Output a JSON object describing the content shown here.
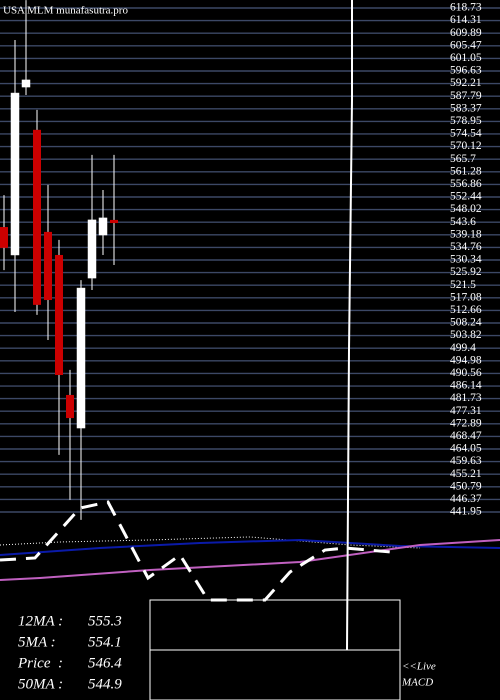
{
  "chart_data": {
    "type": "candlestick",
    "title": "USA MLM munafasutra.pro",
    "ylim": [
      441.95,
      618.73
    ],
    "yticks": [
      618.73,
      614.31,
      609.89,
      605.47,
      601.05,
      596.63,
      592.21,
      587.79,
      583.37,
      578.95,
      574.54,
      570.12,
      565.7,
      561.28,
      556.86,
      552.44,
      548.02,
      543.6,
      539.18,
      534.76,
      530.34,
      525.92,
      521.5,
      517.08,
      512.66,
      508.24,
      503.82,
      499.4,
      494.98,
      490.56,
      486.14,
      481.73,
      477.31,
      472.89,
      468.47,
      464.05,
      459.63,
      455.21,
      450.79,
      446.37,
      441.95
    ],
    "grid": true,
    "up_color": "#ffffff",
    "down_color": "#cc0000",
    "candles": [
      {
        "open": 541.9,
        "high": 553.1,
        "low": 526.8,
        "close": 534.6
      },
      {
        "open": 532.1,
        "high": 607.5,
        "low": 512.1,
        "close": 588.9
      },
      {
        "open": 591.0,
        "high": 621.5,
        "low": 588.2,
        "close": 593.5
      },
      {
        "open": 576.0,
        "high": 583.0,
        "low": 511.1,
        "close": 514.6
      },
      {
        "open": 540.2,
        "high": 556.7,
        "low": 502.3,
        "close": 516.3
      },
      {
        "open": 532.1,
        "high": 537.4,
        "low": 462.0,
        "close": 490.0
      },
      {
        "open": 483.0,
        "high": 491.8,
        "low": 446.2,
        "close": 474.9
      },
      {
        "open": 471.4,
        "high": 523.3,
        "low": 439.2,
        "close": 520.5
      },
      {
        "open": 524.0,
        "high": 567.2,
        "low": 519.8,
        "close": 544.4
      },
      {
        "open": 539.1,
        "high": 554.9,
        "low": 532.1,
        "close": 545.1
      },
      {
        "open": 544.4,
        "high": 567.2,
        "low": 528.6,
        "close": 543.3
      }
    ],
    "indicator": {
      "xlim": [
        0,
        500
      ],
      "ylim": [
        0,
        100
      ],
      "lines": [
        {
          "color": "#ffffff",
          "style": "dotted",
          "x": [
            0,
            60,
            150,
            250,
            350,
            420
          ],
          "values": [
            62.5,
            65,
            66.7,
            69.2,
            62.5,
            60
          ]
        },
        {
          "color": "#0a1aa8",
          "style": "solid",
          "x": [
            0,
            100,
            200,
            300,
            400,
            500
          ],
          "values": [
            54.2,
            60,
            64.2,
            66.7,
            61.7,
            60
          ]
        },
        {
          "color": "#c060c0",
          "style": "solid",
          "x": [
            0,
            40,
            150,
            300,
            420,
            500
          ],
          "values": [
            33.3,
            35,
            41.7,
            48.3,
            62.5,
            66.7
          ]
        },
        {
          "color": "#ffffff",
          "style": "dashed",
          "x": [
            0,
            35,
            80,
            108,
            148,
            180,
            208,
            265,
            290,
            325,
            345,
            390
          ],
          "values": [
            50,
            51.7,
            93.3,
            98.3,
            35,
            54.2,
            16.7,
            16.7,
            40,
            58.3,
            60,
            56.7
          ]
        }
      ]
    },
    "stats": [
      {
        "label": "12MA :",
        "value": 555.3
      },
      {
        "label": "5MA :",
        "value": 554.1
      },
      {
        "label": "Price  :",
        "value": 546.4
      },
      {
        "label": "50MA :",
        "value": 544.9
      }
    ],
    "macd_label": [
      "<<Live",
      "MACD"
    ]
  }
}
